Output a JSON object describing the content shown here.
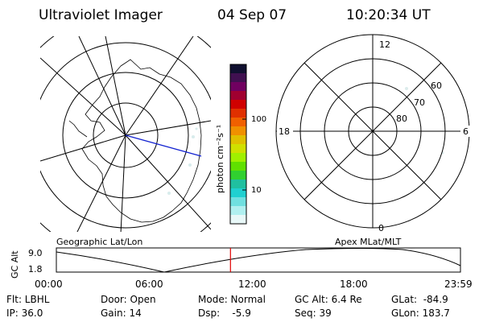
{
  "header": {
    "title": "Ultraviolet Imager",
    "date": "04 Sep 07",
    "time": "10:20:34 UT"
  },
  "colorbar": {
    "label": "photon cm⁻²s⁻¹",
    "ticks": [
      "100",
      "10"
    ],
    "colors": [
      "#101030",
      "#401050",
      "#700060",
      "#a00030",
      "#d00000",
      "#e03000",
      "#f06000",
      "#f09000",
      "#e0c000",
      "#d0e000",
      "#a0f000",
      "#60e000",
      "#30d030",
      "#20c0a0",
      "#20d0d0",
      "#70e0e0",
      "#b0f0f0",
      "#e8f8f8"
    ]
  },
  "left_panel": {
    "label": "Geographic Lat/Lon"
  },
  "right_panel": {
    "label": "Apex MLat/MLT",
    "mlt_labels": {
      "top": "12",
      "left": "18",
      "right": "6",
      "bottom": "0"
    },
    "mlat_labels": [
      "60",
      "70",
      "80"
    ]
  },
  "timeline": {
    "ylabel": "GC Alt",
    "yticks": [
      "9.0",
      "1.8"
    ],
    "xticks": [
      "00:00",
      "06:00",
      "12:00",
      "18:00",
      "23:59"
    ],
    "current_time_fraction": 0.4309,
    "cursor_color": "#e00000"
  },
  "status": {
    "filter": "Flt: LBHL",
    "ip": "IP: 36.0",
    "door": "Door: Open",
    "gain": "Gain: 14",
    "mode": "Mode: Normal",
    "dsp": "Dsp:    -5.9",
    "gc_alt": "GC Alt: 6.4 Re",
    "seq": "Seq: 39",
    "glat": "GLat:  -84.9",
    "glon": "GLon: 183.7"
  }
}
